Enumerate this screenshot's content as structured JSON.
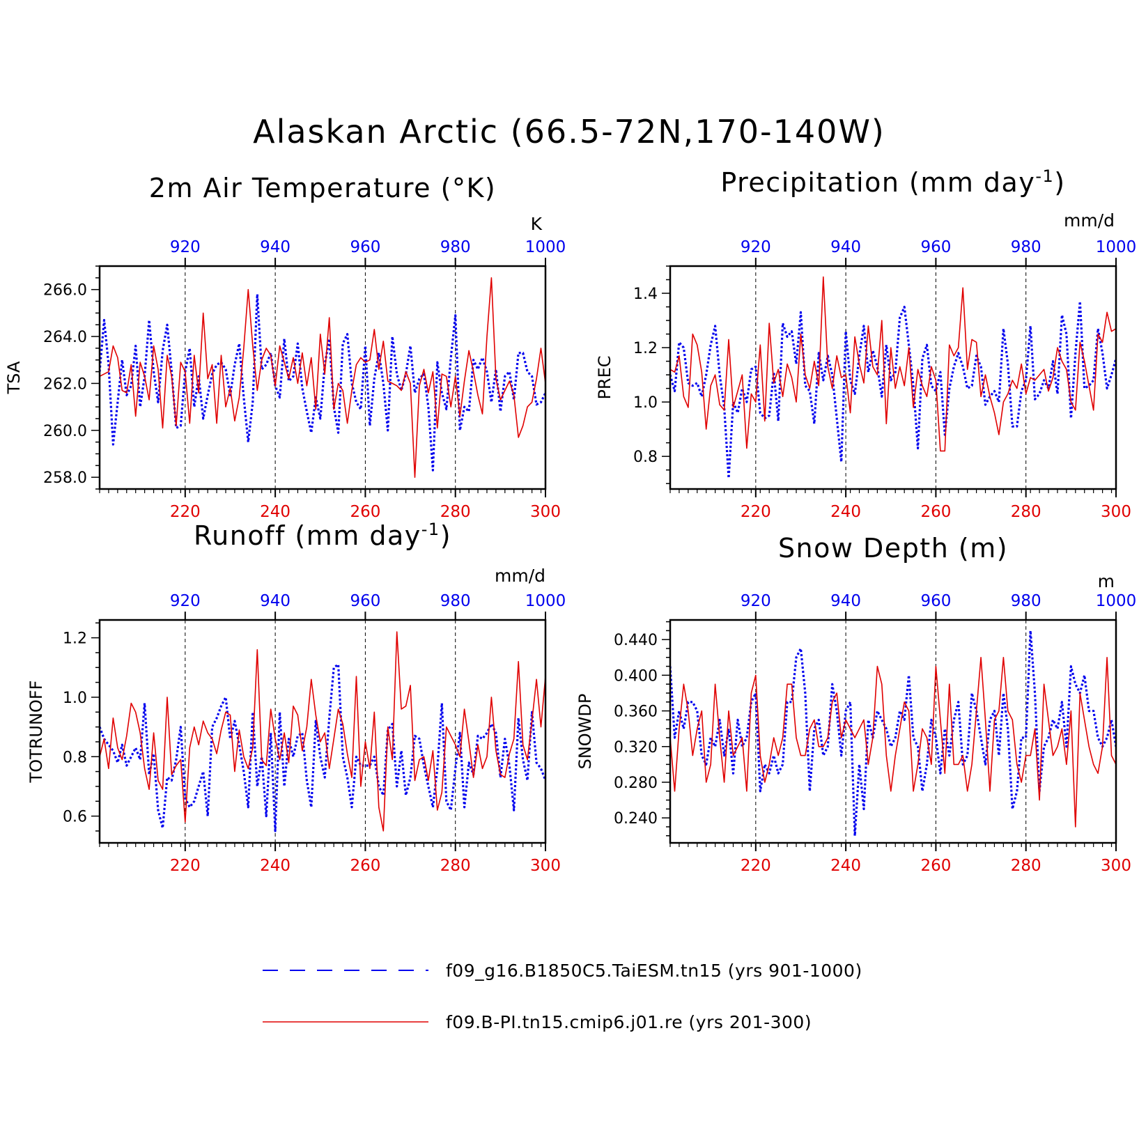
{
  "figure": {
    "title": "Alaskan Arctic (66.5-72N,170-140W)"
  },
  "legend": [
    {
      "label": "f09_g16.B1850C5.TaiESM.tn15 (yrs 901-1000)",
      "color": "#0000ee",
      "style": "dashed"
    },
    {
      "label": "f09.B-PI.tn15.cmip6.j01.re (yrs 201-300)",
      "color": "#e00000",
      "style": "solid"
    }
  ],
  "chart_data": [
    {
      "type": "line",
      "title": "2m Air Temperature (°K)",
      "ylabel": "TSA",
      "unit": "K",
      "ylim": [
        257.5,
        267.0
      ],
      "yticks": [
        "258.0",
        "260.0",
        "262.0",
        "264.0",
        "266.0"
      ],
      "ytick_values": [
        258,
        260,
        262,
        264,
        266
      ],
      "x_bottom": {
        "range": [
          201,
          300
        ],
        "ticks": [
          220,
          240,
          260,
          280,
          300
        ]
      },
      "x_top": {
        "range": [
          901,
          1000
        ],
        "ticks": [
          920,
          940,
          960,
          980,
          1000
        ]
      },
      "grid_x": [
        220,
        240,
        260,
        280
      ],
      "series": [
        {
          "x_axis": "top",
          "color": "#0000ee",
          "values": [
            262.5,
            264.7,
            262.8,
            259.4,
            261.2,
            263.0,
            261.5,
            261.9,
            263.6,
            261.0,
            262.3,
            264.7,
            262.5,
            261.2,
            263.4,
            264.5,
            262.5,
            260.1,
            260.2,
            262.5,
            263.5,
            261.0,
            262.3,
            260.5,
            261.5,
            262.4,
            262.8,
            262.9,
            262.6,
            261.5,
            262.8,
            263.7,
            261.4,
            259.5,
            261.2,
            265.8,
            262.6,
            262.8,
            263.3,
            261.9,
            261.4,
            263.9,
            262.1,
            262.3,
            263.7,
            261.8,
            260.8,
            259.9,
            261.4,
            260.5,
            262.8,
            263.9,
            261.0,
            259.9,
            263.7,
            264.1,
            262.0,
            261.2,
            260.9,
            263.6,
            260.2,
            262.2,
            263.3,
            262.0,
            260.0,
            264.0,
            262.4,
            261.7,
            262.4,
            263.6,
            261.6,
            262.2,
            262.4,
            261.0,
            258.3,
            262.9,
            261.6,
            260.9,
            263.1,
            264.9,
            260.0,
            261.0,
            260.8,
            263.0,
            262.6,
            263.1,
            262.5,
            261.2,
            262.6,
            260.8,
            262.3,
            262.5,
            261.3,
            263.3,
            263.3,
            262.5,
            262.3,
            261.1,
            261.2,
            261.6
          ]
        },
        {
          "x_axis": "bottom",
          "color": "#e00000",
          "values": [
            262.3,
            262.4,
            262.5,
            263.6,
            263.1,
            261.7,
            261.6,
            262.8,
            260.6,
            262.9,
            262.3,
            261.3,
            263.6,
            262.6,
            260.1,
            263.2,
            262.3,
            260.2,
            262.9,
            262.5,
            260.3,
            263.2,
            261.6,
            265.0,
            262.2,
            262.8,
            260.3,
            263.2,
            261.0,
            261.8,
            260.4,
            261.4,
            263.5,
            266.0,
            263.6,
            261.7,
            263.0,
            263.5,
            263.2,
            261.9,
            263.6,
            262.9,
            262.2,
            263.1,
            262.0,
            263.3,
            261.9,
            263.1,
            260.9,
            264.1,
            262.4,
            264.8,
            260.9,
            262.0,
            261.7,
            260.3,
            261.7,
            262.8,
            263.1,
            262.9,
            263.0,
            264.3,
            262.6,
            263.8,
            262.1,
            262.0,
            261.9,
            261.7,
            262.5,
            262.0,
            258.0,
            261.9,
            262.6,
            261.6,
            262.5,
            260.1,
            262.4,
            262.3,
            261.0,
            262.3,
            260.6,
            262.1,
            263.4,
            262.5,
            261.5,
            260.7,
            264.0,
            266.5,
            262.2,
            261.3,
            261.7,
            262.1,
            261.5,
            259.7,
            260.2,
            261.0,
            261.2,
            262.2,
            263.5,
            262.0
          ]
        }
      ]
    },
    {
      "type": "line",
      "title": "Precipitation (mm day",
      "title_sup": "-1",
      "title_end": ")",
      "ylabel": "PREC",
      "unit": "mm/d",
      "ylim": [
        0.68,
        1.5
      ],
      "yticks": [
        "0.8",
        "1.0",
        "1.2",
        "1.4"
      ],
      "ytick_values": [
        0.8,
        1.0,
        1.2,
        1.4
      ],
      "x_bottom": {
        "range": [
          201,
          300
        ],
        "ticks": [
          220,
          240,
          260,
          280,
          300
        ]
      },
      "x_top": {
        "range": [
          901,
          1000
        ],
        "ticks": [
          920,
          940,
          960,
          980,
          1000
        ]
      },
      "grid_x": [
        220,
        240,
        260,
        280
      ],
      "series": [
        {
          "x_axis": "top",
          "color": "#0000ee",
          "values": [
            1.1,
            1.04,
            1.22,
            1.2,
            1.07,
            1.06,
            1.07,
            1.02,
            1.1,
            1.21,
            1.28,
            1.1,
            0.98,
            0.72,
            1.0,
            0.96,
            1.05,
            1.0,
            1.12,
            1.13,
            0.96,
            0.94,
            0.95,
            1.11,
            0.93,
            1.29,
            1.24,
            1.26,
            1.14,
            1.33,
            1.06,
            1.04,
            0.92,
            1.18,
            1.08,
            1.17,
            1.1,
            0.94,
            0.78,
            1.26,
            1.08,
            1.03,
            1.17,
            1.28,
            1.11,
            1.19,
            1.13,
            1.02,
            1.21,
            1.08,
            1.11,
            1.31,
            1.35,
            1.21,
            1.06,
            0.83,
            1.16,
            1.21,
            1.06,
            1.04,
            1.11,
            0.88,
            1.05,
            1.13,
            1.18,
            1.13,
            1.05,
            1.06,
            1.17,
            1.13,
            0.99,
            1.02,
            1.04,
            1.0,
            1.27,
            1.14,
            0.91,
            0.91,
            1.04,
            1.08,
            1.28,
            1.01,
            1.03,
            1.08,
            1.05,
            1.15,
            1.03,
            1.32,
            1.25,
            0.94,
            1.18,
            1.37,
            1.05,
            1.06,
            1.08,
            1.27,
            1.18,
            1.05,
            1.1,
            1.16
          ]
        },
        {
          "x_axis": "bottom",
          "color": "#e00000",
          "values": [
            1.12,
            1.11,
            1.17,
            1.02,
            0.98,
            1.25,
            1.21,
            1.11,
            0.9,
            1.06,
            1.1,
            0.99,
            0.97,
            1.23,
            0.98,
            1.04,
            1.1,
            0.83,
            1.03,
            1.0,
            1.21,
            0.93,
            1.29,
            1.07,
            1.12,
            1.02,
            1.14,
            1.09,
            1.0,
            1.25,
            1.1,
            1.05,
            1.15,
            1.06,
            1.46,
            1.13,
            1.05,
            1.17,
            1.09,
            1.1,
            0.96,
            1.24,
            1.14,
            1.07,
            1.28,
            1.13,
            1.1,
            1.3,
            0.92,
            1.2,
            1.05,
            1.13,
            1.06,
            1.2,
            0.98,
            1.12,
            1.06,
            1.02,
            1.13,
            1.08,
            0.82,
            0.82,
            1.21,
            1.17,
            1.2,
            1.42,
            1.12,
            1.23,
            1.22,
            1.02,
            1.1,
            1.02,
            0.96,
            0.88,
            1.0,
            1.03,
            1.08,
            1.05,
            1.14,
            1.03,
            1.09,
            1.08,
            1.1,
            1.12,
            1.04,
            1.09,
            1.2,
            1.15,
            1.12,
            1.0,
            0.97,
            1.22,
            1.15,
            1.06,
            0.97,
            1.25,
            1.22,
            1.33,
            1.26,
            1.27
          ]
        }
      ]
    },
    {
      "type": "line",
      "title": "Runoff (mm day",
      "title_sup": "-1",
      "title_end": ")",
      "ylabel": "TOTRUNOFF",
      "unit": "mm/d",
      "ylim": [
        0.51,
        1.26
      ],
      "yticks": [
        "0.6",
        "0.8",
        "1.0",
        "1.2"
      ],
      "ytick_values": [
        0.6,
        0.8,
        1.0,
        1.2
      ],
      "x_bottom": {
        "range": [
          201,
          300
        ],
        "ticks": [
          220,
          240,
          260,
          280,
          300
        ]
      },
      "x_top": {
        "range": [
          901,
          1000
        ],
        "ticks": [
          920,
          940,
          960,
          980,
          1000
        ]
      },
      "grid_x": [
        220,
        240,
        260,
        280
      ],
      "series": [
        {
          "x_axis": "top",
          "color": "#0000ee",
          "values": [
            0.9,
            0.86,
            0.84,
            0.82,
            0.78,
            0.84,
            0.77,
            0.8,
            0.83,
            0.79,
            0.98,
            0.74,
            0.81,
            0.62,
            0.56,
            0.73,
            0.72,
            0.79,
            0.9,
            0.66,
            0.63,
            0.65,
            0.7,
            0.75,
            0.6,
            0.9,
            0.93,
            0.97,
            1.0,
            0.86,
            0.92,
            0.84,
            0.75,
            0.63,
            0.95,
            0.7,
            0.8,
            0.6,
            0.88,
            0.55,
            0.95,
            0.7,
            0.86,
            0.8,
            0.87,
            0.88,
            0.72,
            0.63,
            0.92,
            0.8,
            0.73,
            0.93,
            1.1,
            1.11,
            0.8,
            0.73,
            0.63,
            0.8,
            0.77,
            0.77,
            0.77,
            0.8,
            0.7,
            0.67,
            0.89,
            0.91,
            0.7,
            0.82,
            0.67,
            0.73,
            0.87,
            0.86,
            0.77,
            0.7,
            0.63,
            0.76,
            0.98,
            0.65,
            0.62,
            0.76,
            0.88,
            0.63,
            0.78,
            0.74,
            0.87,
            0.86,
            0.88,
            0.91,
            0.88,
            0.73,
            0.86,
            0.77,
            0.62,
            0.93,
            0.79,
            0.72,
            0.95,
            0.78,
            0.76,
            0.72
          ]
        },
        {
          "x_axis": "bottom",
          "color": "#e00000",
          "values": [
            0.8,
            0.86,
            0.76,
            0.93,
            0.83,
            0.79,
            0.87,
            0.98,
            0.95,
            0.88,
            0.76,
            0.69,
            0.88,
            0.72,
            0.69,
            1.0,
            0.74,
            0.77,
            0.79,
            0.58,
            0.83,
            0.9,
            0.84,
            0.92,
            0.88,
            0.86,
            0.81,
            0.89,
            0.95,
            0.94,
            0.75,
            0.89,
            0.8,
            0.76,
            0.83,
            1.16,
            0.79,
            0.77,
            0.96,
            0.86,
            0.79,
            0.88,
            0.78,
            0.97,
            0.94,
            0.82,
            0.9,
            1.06,
            0.94,
            0.85,
            0.88,
            0.76,
            0.86,
            0.96,
            0.91,
            0.81,
            0.73,
            1.07,
            0.7,
            0.85,
            0.76,
            0.95,
            0.63,
            0.55,
            0.9,
            0.79,
            1.22,
            0.96,
            0.97,
            1.04,
            0.72,
            0.79,
            0.8,
            0.72,
            0.82,
            0.62,
            0.68,
            0.9,
            0.87,
            0.84,
            0.8,
            0.96,
            0.85,
            0.73,
            0.84,
            0.76,
            0.8,
            1.0,
            0.82,
            0.74,
            0.73,
            0.81,
            0.86,
            1.12,
            0.84,
            0.79,
            0.92,
            1.06,
            0.9,
            1.07
          ]
        }
      ]
    },
    {
      "type": "line",
      "title": "Snow Depth (m)",
      "ylabel": "SNOWDP",
      "unit": "m",
      "ylim": [
        0.212,
        0.462
      ],
      "yticks": [
        "0.240",
        "0.280",
        "0.320",
        "0.360",
        "0.400",
        "0.440"
      ],
      "ytick_values": [
        0.24,
        0.28,
        0.32,
        0.36,
        0.4,
        0.44
      ],
      "x_bottom": {
        "range": [
          201,
          300
        ],
        "ticks": [
          220,
          240,
          260,
          280,
          300
        ]
      },
      "x_top": {
        "range": [
          901,
          1000
        ],
        "ticks": [
          920,
          940,
          960,
          980,
          1000
        ]
      },
      "grid_x": [
        220,
        240,
        260,
        280
      ],
      "series": [
        {
          "x_axis": "top",
          "color": "#0000ee",
          "values": [
            0.41,
            0.33,
            0.36,
            0.34,
            0.37,
            0.37,
            0.36,
            0.31,
            0.3,
            0.33,
            0.32,
            0.35,
            0.31,
            0.34,
            0.29,
            0.35,
            0.32,
            0.33,
            0.37,
            0.38,
            0.27,
            0.3,
            0.29,
            0.31,
            0.29,
            0.3,
            0.37,
            0.37,
            0.42,
            0.43,
            0.38,
            0.27,
            0.34,
            0.35,
            0.31,
            0.32,
            0.39,
            0.36,
            0.31,
            0.36,
            0.37,
            0.22,
            0.3,
            0.25,
            0.35,
            0.33,
            0.36,
            0.35,
            0.34,
            0.32,
            0.33,
            0.36,
            0.35,
            0.4,
            0.33,
            0.32,
            0.27,
            0.3,
            0.35,
            0.33,
            0.29,
            0.34,
            0.31,
            0.35,
            0.37,
            0.3,
            0.31,
            0.38,
            0.36,
            0.33,
            0.3,
            0.35,
            0.36,
            0.31,
            0.38,
            0.34,
            0.25,
            0.27,
            0.33,
            0.33,
            0.45,
            0.38,
            0.27,
            0.32,
            0.33,
            0.35,
            0.34,
            0.37,
            0.32,
            0.41,
            0.39,
            0.38,
            0.4,
            0.36,
            0.36,
            0.33,
            0.32,
            0.33,
            0.35,
            0.32
          ]
        },
        {
          "x_axis": "bottom",
          "color": "#e00000",
          "values": [
            0.33,
            0.27,
            0.34,
            0.39,
            0.36,
            0.31,
            0.34,
            0.36,
            0.28,
            0.3,
            0.39,
            0.33,
            0.28,
            0.36,
            0.31,
            0.32,
            0.33,
            0.27,
            0.38,
            0.4,
            0.31,
            0.28,
            0.3,
            0.33,
            0.31,
            0.33,
            0.39,
            0.39,
            0.33,
            0.31,
            0.31,
            0.34,
            0.35,
            0.32,
            0.32,
            0.33,
            0.37,
            0.38,
            0.33,
            0.35,
            0.34,
            0.33,
            0.34,
            0.35,
            0.3,
            0.33,
            0.41,
            0.39,
            0.31,
            0.27,
            0.31,
            0.34,
            0.37,
            0.36,
            0.27,
            0.3,
            0.34,
            0.33,
            0.3,
            0.41,
            0.35,
            0.29,
            0.39,
            0.3,
            0.3,
            0.31,
            0.27,
            0.3,
            0.36,
            0.42,
            0.35,
            0.27,
            0.35,
            0.36,
            0.42,
            0.36,
            0.35,
            0.3,
            0.28,
            0.31,
            0.31,
            0.34,
            0.26,
            0.39,
            0.35,
            0.31,
            0.32,
            0.34,
            0.3,
            0.36,
            0.23,
            0.38,
            0.35,
            0.32,
            0.3,
            0.29,
            0.32,
            0.42,
            0.31,
            0.3
          ]
        }
      ]
    }
  ]
}
